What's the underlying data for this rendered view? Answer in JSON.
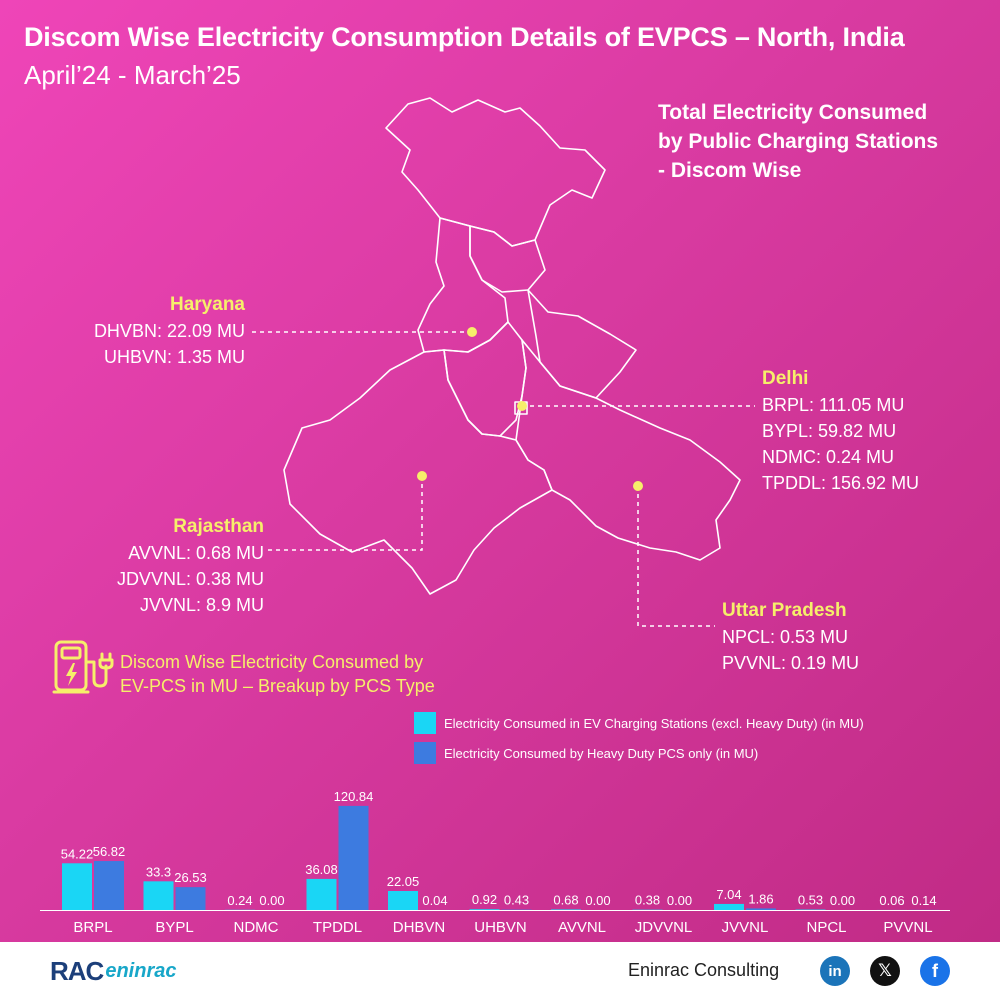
{
  "header": {
    "title": "Discom Wise Electricity Consumption Details of EVPCS – North, India",
    "subtitle": "April’24 - March’25"
  },
  "map": {
    "heading_lines": [
      "Total Electricity Consumed",
      "by Public Charging Stations",
      "- Discom Wise"
    ],
    "marker_color": "#f6ef6a",
    "regions": {
      "haryana": {
        "name": "Haryana",
        "lines": [
          "DHVBN: 22.09 MU",
          "UHBVN: 1.35 MU"
        ]
      },
      "delhi": {
        "name": "Delhi",
        "lines": [
          "BRPL: 111.05 MU",
          "BYPL: 59.82 MU",
          "NDMC: 0.24 MU",
          "TPDDL: 156.92 MU"
        ]
      },
      "rajasthan": {
        "name": "Rajasthan",
        "lines": [
          "AVVNL: 0.68 MU",
          "JDVVNL: 0.38 MU",
          "JVVNL: 8.9 MU"
        ]
      },
      "up": {
        "name": "Uttar Pradesh",
        "lines": [
          "NPCL: 0.53 MU",
          "PVVNL: 0.19 MU"
        ]
      }
    }
  },
  "breakup": {
    "heading_lines": [
      "Discom Wise Electricity Consumed by",
      "EV-PCS in MU – Breakup by PCS Type"
    ],
    "icon": "ev-charging-station-icon"
  },
  "chart_data": {
    "type": "bar",
    "categories": [
      "BRPL",
      "BYPL",
      "NDMC",
      "TPDDL",
      "DHBVN",
      "UHBVN",
      "AVVNL",
      "JDVVNL",
      "JVVNL",
      "NPCL",
      "PVVNL"
    ],
    "series": [
      {
        "name": "Electricity Consumed in EV Charging Stations (excl. Heavy Duty) (in MU)",
        "color": "#1ad6f5",
        "values": [
          54.22,
          33.3,
          0.24,
          36.08,
          22.05,
          0.92,
          0.68,
          0.38,
          7.04,
          0.53,
          0.06
        ],
        "labels": [
          "54.22",
          "33.3",
          "0.24",
          "36.08",
          "22.05",
          "0.92",
          "0.68",
          "0.38",
          "7.04",
          "0.53",
          "0.06"
        ]
      },
      {
        "name": "Electricity Consumed by Heavy Duty PCS only (in MU)",
        "color": "#3d7be0",
        "values": [
          56.82,
          26.53,
          0.0,
          120.84,
          0.04,
          0.43,
          0.0,
          0.0,
          1.86,
          0.0,
          0.14
        ],
        "labels": [
          "56.82",
          "26.53",
          "0.00",
          "120.84",
          "0.04",
          "0.43",
          "0.00",
          "0.00",
          "1.86",
          "0.00",
          "0.14"
        ]
      }
    ],
    "ylim": [
      0,
      130
    ],
    "grid": false,
    "legend_position": "top-right"
  },
  "footer": {
    "logo_main": "RAC",
    "logo_sub": "eninrac",
    "company": "Eninrac Consulting",
    "social": {
      "linkedin": "in",
      "x": "𝕏",
      "facebook": "f"
    }
  }
}
